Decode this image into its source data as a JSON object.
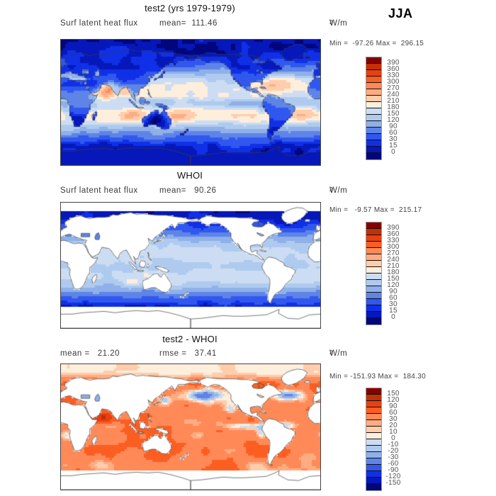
{
  "season": "JJA",
  "palette_low_to_high": [
    "#01067C",
    "#0618B9",
    "#1030E8",
    "#3158EE",
    "#5E84E8",
    "#8FB0E8",
    "#AECBEF",
    "#CCDDF3",
    "#FEEEDC",
    "#FFCDAB",
    "#FFAC83",
    "#FF8A57",
    "#FC5E22",
    "#E84012",
    "#C23105",
    "#870000"
  ],
  "panels": [
    {
      "title": "test2 (yrs 1979-1979)",
      "label_left": "Surf latent heat flux",
      "label_mid": "mean=  111.46",
      "units_base": "W/m",
      "units_exp": "2",
      "minmax": "Min =  -97.26 Max =  296.15",
      "colorbar_labels_top_to_bottom": [
        "390",
        "360",
        "330",
        "300",
        "270",
        "240",
        "210",
        "180",
        "150",
        "120",
        "90",
        "60",
        "30",
        "15",
        "0"
      ]
    },
    {
      "title": "WHOI",
      "label_left": "Surf latent heat flux",
      "label_mid": "mean=   90.26",
      "units_base": "W/m",
      "units_exp": "2",
      "minmax": "Min =   -9.57 Max =  215.17",
      "colorbar_labels_top_to_bottom": [
        "390",
        "360",
        "330",
        "300",
        "270",
        "240",
        "210",
        "180",
        "150",
        "120",
        "90",
        "60",
        "30",
        "15",
        "0"
      ]
    },
    {
      "title": "test2 - WHOI",
      "label_left": "mean =   21.20",
      "label_mid": "rmse =   37.41",
      "units_base": "W/m",
      "units_exp": "2",
      "minmax": "Min = -151.93 Max =  184.30",
      "colorbar_labels_top_to_bottom": [
        "150",
        "120",
        "90",
        "60",
        "30",
        "20",
        "10",
        "0",
        "-10",
        "-20",
        "-30",
        "-60",
        "-90",
        "-120",
        "-150"
      ]
    }
  ],
  "chart_data": {
    "type": "heatmap",
    "subtype": "global lat-lon maps, longitude 0-360E (Pacific centered), latitude 90N-90S",
    "season": "JJA",
    "variable": "Surf latent heat flux",
    "units": "W/m^2",
    "palette_low_to_high": [
      "#01067C",
      "#0618B9",
      "#1030E8",
      "#3158EE",
      "#5E84E8",
      "#8FB0E8",
      "#AECBEF",
      "#CCDDF3",
      "#FEEEDC",
      "#FFCDAB",
      "#FFAC83",
      "#FF8A57",
      "#FC5E22",
      "#E84012",
      "#C23105",
      "#870000"
    ],
    "panels": [
      {
        "title": "test2 (yrs 1979-1979)",
        "mean": 111.46,
        "min": -97.26,
        "max": 296.15,
        "levels": [
          0,
          15,
          30,
          60,
          90,
          120,
          150,
          180,
          210,
          240,
          270,
          300,
          330,
          360,
          390
        ],
        "coverage": "land and ocean"
      },
      {
        "title": "WHOI",
        "mean": 90.26,
        "min": -9.57,
        "max": 215.17,
        "levels": [
          0,
          15,
          30,
          60,
          90,
          120,
          150,
          180,
          210,
          240,
          270,
          300,
          330,
          360,
          390
        ],
        "coverage": "ocean only, land and sea-ice white"
      },
      {
        "title": "test2 - WHOI",
        "mean": 21.2,
        "rmse": 37.41,
        "min": -151.93,
        "max": 184.3,
        "levels": [
          -150,
          -120,
          -90,
          -60,
          -30,
          -20,
          -10,
          0,
          10,
          20,
          30,
          60,
          90,
          120,
          150
        ],
        "coverage": "ocean only, land and sea-ice white"
      }
    ]
  }
}
